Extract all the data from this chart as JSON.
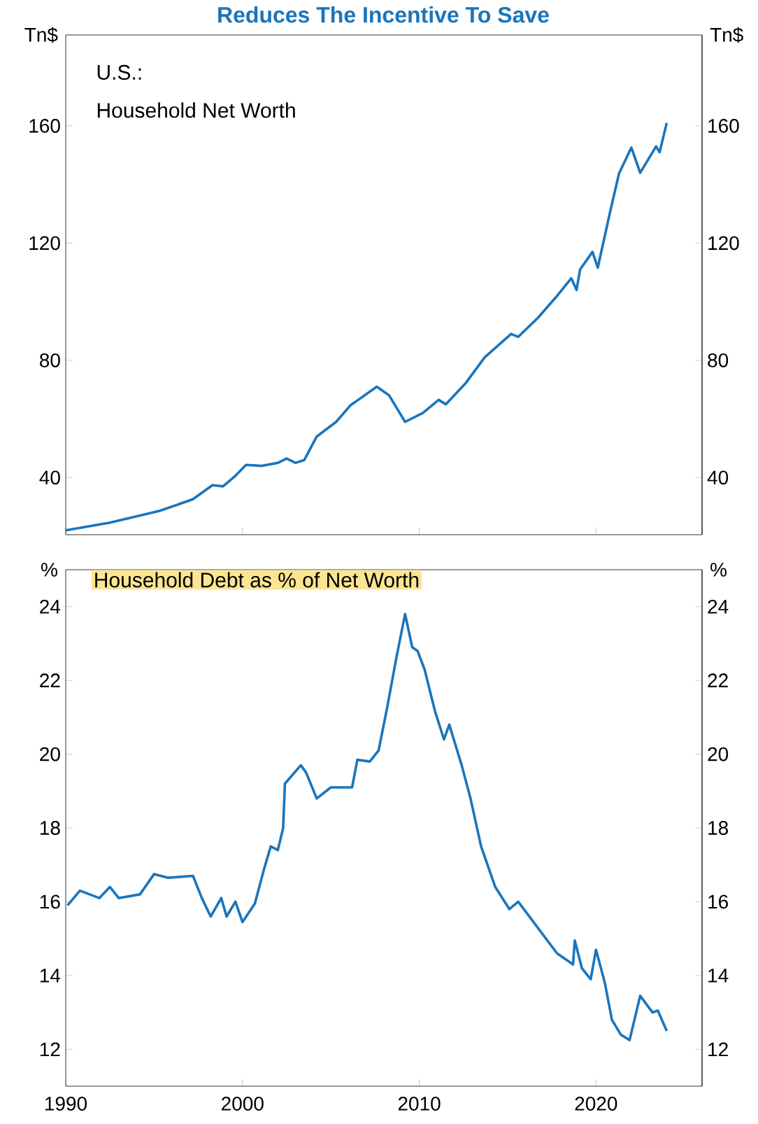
{
  "chart_data": [
    {
      "type": "line",
      "title": "Reduces The Incentive To Save",
      "annotations": [
        "U.S.:",
        "Household Net Worth"
      ],
      "ylabel": "Tn$",
      "y2label": "Tn$",
      "color": "#1a75bc",
      "x": [
        1990,
        1992.5,
        1995.3,
        1997.2,
        1998.3,
        1998.9,
        1999.6,
        2000.2,
        2001.1,
        2002,
        2002.5,
        2003,
        2003.5,
        2004.2,
        2005.3,
        2006.1,
        2007.6,
        2008.3,
        2009.2,
        2010.2,
        2011.1,
        2011.5,
        2012.6,
        2013.7,
        2015.2,
        2015.6,
        2016.7,
        2017.8,
        2018.6,
        2018.9,
        2019.1,
        2019.8,
        2020.1,
        2020.8,
        2021.3,
        2022.0,
        2022.5,
        2023.4,
        2023.6,
        2024.0
      ],
      "values": [
        22,
        24.6,
        28.6,
        32.6,
        37.4,
        37,
        40.6,
        44.3,
        44,
        45,
        46.5,
        45,
        46,
        54,
        59,
        64.6,
        71,
        68,
        59,
        62,
        66.5,
        65,
        72,
        81,
        89,
        88,
        94.4,
        102,
        108,
        104,
        111,
        117,
        111.6,
        130.7,
        143.7,
        152.6,
        144,
        153,
        151,
        161
      ],
      "xlim": [
        1990,
        2026
      ],
      "xticks": [
        1990,
        2000,
        2010,
        2020
      ],
      "ylim": [
        20.5,
        191
      ],
      "yticks": [
        40,
        80,
        120,
        160
      ],
      "y2lim": [
        20.5,
        191
      ],
      "y2ticks": [
        40,
        80,
        120,
        160
      ],
      "tick_labels": "y"
    },
    {
      "type": "line",
      "title": "Household Debt as % of Net Worth",
      "ylabel": "%",
      "y2label": "%",
      "color": "#1a75bc",
      "x": [
        1990.1,
        1990.8,
        1991.9,
        1992.5,
        1993,
        1994.2,
        1995,
        1995.8,
        1997.2,
        1997.7,
        1998.2,
        1998.8,
        1999.1,
        1999.6,
        2000,
        2000.7,
        2001.2,
        2001.6,
        2002,
        2002.3,
        2002.4,
        2003.3,
        2003.6,
        2004.2,
        2005,
        2006.2,
        2006.5,
        2007.2,
        2007.7,
        2008.2,
        2008.7,
        2009.2,
        2009.6,
        2009.9,
        2010.3,
        2010.9,
        2011.4,
        2011.7,
        2012.4,
        2012.9,
        2013.5,
        2014.3,
        2015.1,
        2015.6,
        2016.7,
        2017.8,
        2018.7,
        2018.8,
        2019.2,
        2019.7,
        2020.0,
        2020.5,
        2020.9,
        2021.4,
        2021.9,
        2022.5,
        2023.2,
        2023.5,
        2024.0
      ],
      "values": [
        15.9,
        16.3,
        16.1,
        16.4,
        16.1,
        16.2,
        16.75,
        16.65,
        16.7,
        16.1,
        15.6,
        16.1,
        15.6,
        16.0,
        15.45,
        15.95,
        16.85,
        17.5,
        17.4,
        18.0,
        19.2,
        19.7,
        19.5,
        18.8,
        19.1,
        19.1,
        19.85,
        19.8,
        20.1,
        21.3,
        22.6,
        23.8,
        22.9,
        22.8,
        22.3,
        21.15,
        20.4,
        20.8,
        19.7,
        18.8,
        17.5,
        16.4,
        15.8,
        16.0,
        15.3,
        14.6,
        14.3,
        14.95,
        14.2,
        13.9,
        14.7,
        13.8,
        12.8,
        12.4,
        12.25,
        13.45,
        13.0,
        13.05,
        12.5
      ],
      "xlim": [
        1990,
        2026
      ],
      "xticks": [
        1990,
        2000,
        2010,
        2020
      ],
      "ylim": [
        11,
        25
      ],
      "yticks": [
        12,
        14,
        16,
        18,
        20,
        22,
        24
      ],
      "y2lim": [
        11,
        25
      ],
      "y2ticks": [
        12,
        14,
        16,
        18,
        20,
        22,
        24
      ]
    }
  ]
}
